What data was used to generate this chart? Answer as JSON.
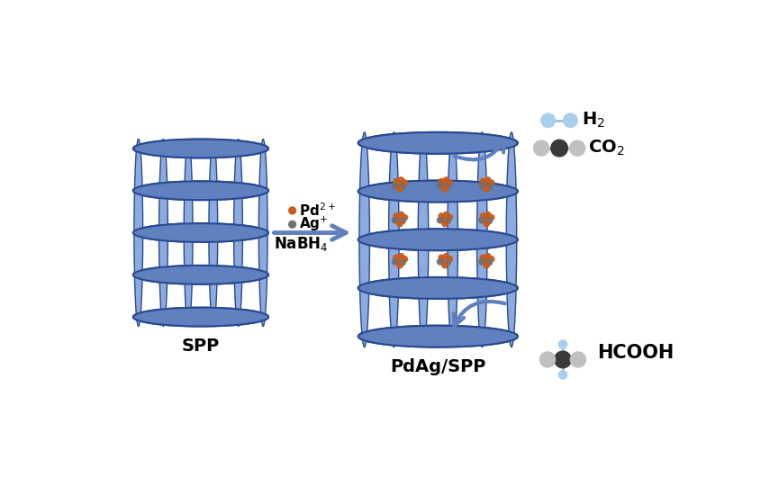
{
  "bg_color": "#ffffff",
  "zeolite_color": "#6080c0",
  "zeolite_dark": "#2a4a90",
  "zeolite_light": "#8aaae0",
  "zeolite_fill": "#7090cc",
  "arrow_color": "#6080c0",
  "pd_color": "#c85a1a",
  "ag_color": "#707070",
  "spp_label": "SPP",
  "pdagspp_label": "PdAg/SPP",
  "nabh4_label": "NaBH$_4$",
  "pd_label": "Pd$^{2+}$",
  "ag_label": "Ag$^{+}$",
  "hcooh_label": "HCOOH",
  "h2_label": "H$_2$",
  "co2_label": "CO$_2$"
}
